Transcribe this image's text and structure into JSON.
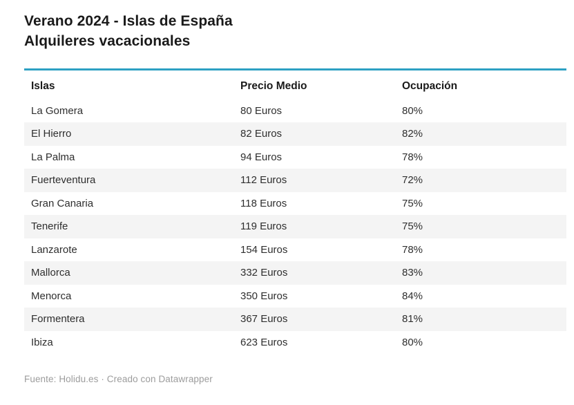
{
  "title": {
    "line1": "Verano 2024 - Islas de España",
    "line2": "Alquileres vacacionales"
  },
  "table": {
    "columns": [
      "Islas",
      "Precio Medio",
      "Ocupación"
    ],
    "rows": [
      {
        "isla": "La Gomera",
        "precio": "80 Euros",
        "ocupacion": "80%"
      },
      {
        "isla": "El Hierro",
        "precio": "82 Euros",
        "ocupacion": "82%"
      },
      {
        "isla": "La Palma",
        "precio": "94 Euros",
        "ocupacion": "78%"
      },
      {
        "isla": "Fuerteventura",
        "precio": "112 Euros",
        "ocupacion": "72%"
      },
      {
        "isla": "Gran Canaria",
        "precio": "118 Euros",
        "ocupacion": "75%"
      },
      {
        "isla": "Tenerife",
        "precio": "119 Euros",
        "ocupacion": "75%"
      },
      {
        "isla": "Lanzarote",
        "precio": "154 Euros",
        "ocupacion": "78%"
      },
      {
        "isla": "Mallorca",
        "precio": "332 Euros",
        "ocupacion": "83%"
      },
      {
        "isla": "Menorca",
        "precio": "350 Euros",
        "ocupacion": "84%"
      },
      {
        "isla": "Formentera",
        "precio": "367 Euros",
        "ocupacion": "81%"
      },
      {
        "isla": "Ibiza",
        "precio": "623 Euros",
        "ocupacion": "80%"
      }
    ]
  },
  "footer": {
    "text": "Fuente: Holidu.es · Creado con Datawrapper"
  },
  "colors": {
    "accent_rule": "#2da0c3",
    "row_stripe": "#f4f4f4",
    "title_text": "#1a1a1a",
    "body_text": "#2e2e2e",
    "footer_text": "#9c9c9c"
  },
  "chart_data": {
    "type": "table",
    "title": "Verano 2024 - Islas de España — Alquileres vacacionales",
    "columns": [
      "Islas",
      "Precio Medio",
      "Ocupación"
    ],
    "categories": [
      "La Gomera",
      "El Hierro",
      "La Palma",
      "Fuerteventura",
      "Gran Canaria",
      "Tenerife",
      "Lanzarote",
      "Mallorca",
      "Menorca",
      "Formentera",
      "Ibiza"
    ],
    "series": [
      {
        "name": "Precio Medio (Euros)",
        "values": [
          80,
          82,
          94,
          112,
          118,
          119,
          154,
          332,
          350,
          367,
          623
        ]
      },
      {
        "name": "Ocupación (%)",
        "values": [
          80,
          82,
          78,
          72,
          75,
          75,
          78,
          83,
          84,
          81,
          80
        ]
      }
    ],
    "source": "Fuente: Holidu.es · Creado con Datawrapper"
  }
}
